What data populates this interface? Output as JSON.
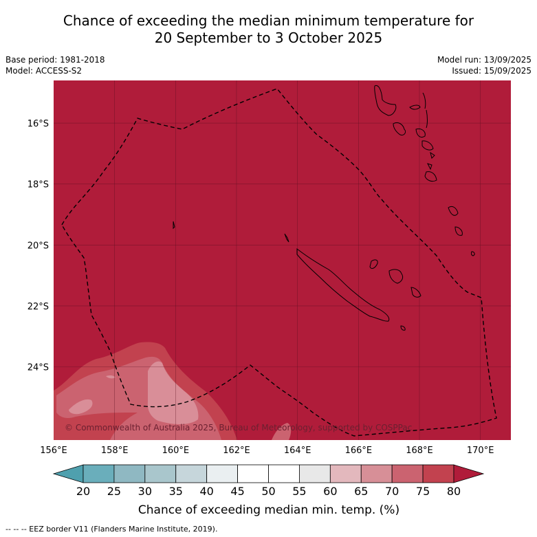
{
  "title_line1": "Chance of exceeding the median minimum temperature for",
  "title_line2": "20 September to 3 October 2025",
  "meta_left": [
    "Base period: 1981-2018",
    "Model: ACCESS-S2"
  ],
  "meta_right": [
    "Model run: 13/09/2025",
    "Issued: 15/09/2025"
  ],
  "copyright": "© Commonwealth of Australia 2025, Bureau of Meteorology, supported by COSPPac",
  "footer": "--  --  -- EEZ border V11 (Flanders Marine Institute, 2019).",
  "colors": {
    "base_fill": "#b01c3a",
    "c75": "#c2424f",
    "c70": "#cb6370",
    "c65": "#d98e98"
  },
  "chart_data": {
    "type": "map",
    "lon_range": [
      156,
      171
    ],
    "lat_range": [
      -26.4,
      -14.6
    ],
    "lon_ticks": [
      156,
      158,
      160,
      162,
      164,
      166,
      168,
      170
    ],
    "lon_tick_labels": [
      "156°E",
      "158°E",
      "160°E",
      "162°E",
      "164°E",
      "166°E",
      "168°E",
      "170°E"
    ],
    "lat_ticks": [
      -16,
      -18,
      -20,
      -22,
      -24
    ],
    "lat_tick_labels": [
      "16°S",
      "18°S",
      "20°S",
      "22°S",
      "24°S"
    ],
    "field_value": 80,
    "colorbar": {
      "ticks": [
        "20",
        "25",
        "30",
        "35",
        "40",
        "45",
        "50",
        "55",
        "60",
        "65",
        "70",
        "75",
        "80"
      ],
      "colors": [
        "#6aaebb",
        "#8fb8c2",
        "#a9c6cc",
        "#c6d6db",
        "#eaeff1",
        "#ffffff",
        "#ffffff",
        "#e8e8e8",
        "#e3b8bd",
        "#d78f97",
        "#cb6370",
        "#c2424f"
      ],
      "under_color": "#4fa0ae",
      "over_color": "#b01c3a",
      "label": "Chance of exceeding median min. temp. (%)"
    }
  }
}
